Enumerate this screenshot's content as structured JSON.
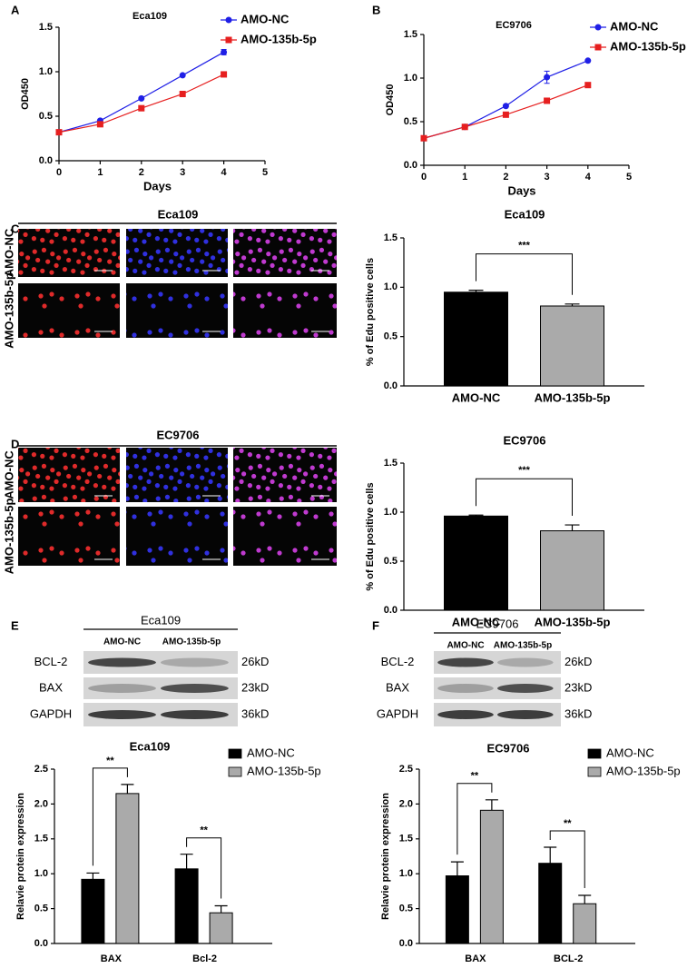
{
  "panel_labels": [
    "A",
    "B",
    "C",
    "D",
    "E",
    "F"
  ],
  "chart_data": [
    {
      "type": "line",
      "title": "Eca109",
      "x_label": "Days",
      "y_label": "OD450",
      "x": [
        0,
        1,
        2,
        3,
        4
      ],
      "xlim": [
        0,
        5
      ],
      "xticks": [
        0,
        1,
        2,
        3,
        4,
        5
      ],
      "ylim": [
        0,
        1.5
      ],
      "yticks": [
        {
          "value": 0,
          "label": "0.0"
        },
        {
          "value": 0.5,
          "label": "0.5"
        },
        {
          "value": 1,
          "label": "1.0"
        },
        {
          "value": 1.5,
          "label": "1.5"
        }
      ],
      "legend": "upper right",
      "series": [
        {
          "name": "AMO-NC",
          "color": "#1f1fe6",
          "marker": "circle",
          "values": [
            0.32,
            0.45,
            0.7,
            0.96,
            1.22
          ],
          "errors": [
            0.01,
            0.01,
            0.01,
            0.01,
            0.03
          ]
        },
        {
          "name": "AMO-135b-5p",
          "color": "#e61f1f",
          "marker": "square",
          "values": [
            0.32,
            0.41,
            0.59,
            0.75,
            0.97
          ],
          "errors": [
            0.01,
            0.01,
            0.01,
            0.01,
            0.01
          ]
        }
      ]
    },
    {
      "type": "line",
      "title": "EC9706",
      "x_label": "Days",
      "y_label": "OD450",
      "x": [
        0,
        1,
        2,
        3,
        4
      ],
      "xlim": [
        0,
        5
      ],
      "xticks": [
        0,
        1,
        2,
        3,
        4,
        5
      ],
      "ylim": [
        0,
        1.5
      ],
      "yticks": [
        {
          "value": 0,
          "label": "0.0"
        },
        {
          "value": 0.5,
          "label": "0.5"
        },
        {
          "value": 1,
          "label": "1.0"
        },
        {
          "value": 1.5,
          "label": "1.5"
        }
      ],
      "legend": "upper right",
      "series": [
        {
          "name": "AMO-NC",
          "color": "#1f1fe6",
          "marker": "circle",
          "values": [
            0.31,
            0.44,
            0.68,
            1.01,
            1.2
          ],
          "errors": [
            0.01,
            0.01,
            0.01,
            0.07,
            0.01
          ]
        },
        {
          "name": "AMO-135b-5p",
          "color": "#e61f1f",
          "marker": "square",
          "values": [
            0.31,
            0.44,
            0.58,
            0.74,
            0.92
          ],
          "errors": [
            0.01,
            0.01,
            0.01,
            0.01,
            0.01
          ]
        }
      ]
    },
    {
      "type": "bar",
      "title": "Eca109",
      "y_label": "% of Edu positive cells",
      "categories": [
        "AMO-NC",
        "AMO-135b-5p"
      ],
      "values": [
        0.95,
        0.81
      ],
      "errors": [
        0.02,
        0.02
      ],
      "colors": [
        "#000000",
        "#aaaaaa"
      ],
      "ylim": [
        0,
        1.5
      ],
      "yticks": [
        {
          "value": 0,
          "label": "0.0"
        },
        {
          "value": 0.5,
          "label": "0.5"
        },
        {
          "value": 1,
          "label": "1.0"
        },
        {
          "value": 1.5,
          "label": "1.5"
        }
      ],
      "annotations": [
        "***"
      ]
    },
    {
      "type": "bar",
      "title": "EC9706",
      "y_label": "% of Edu positive cells",
      "categories": [
        "AMO-NC",
        "AMO-135b-5p"
      ],
      "values": [
        0.96,
        0.81
      ],
      "errors": [
        0.01,
        0.06
      ],
      "colors": [
        "#000000",
        "#aaaaaa"
      ],
      "ylim": [
        0,
        1.5
      ],
      "yticks": [
        {
          "value": 0,
          "label": "0.0"
        },
        {
          "value": 0.5,
          "label": "0.5"
        },
        {
          "value": 1,
          "label": "1.0"
        },
        {
          "value": 1.5,
          "label": "1.5"
        }
      ],
      "annotations": [
        "***"
      ]
    },
    {
      "type": "grouped_bar",
      "title": "Eca109",
      "y_label": "Relavie protein expression",
      "categories": [
        "BAX",
        "Bcl-2"
      ],
      "legend": "upper right",
      "ylim": [
        0,
        2.5
      ],
      "yticks": [
        {
          "value": 0,
          "label": "0.0"
        },
        {
          "value": 0.5,
          "label": "0.5"
        },
        {
          "value": 1,
          "label": "1.0"
        },
        {
          "value": 1.5,
          "label": "1.5"
        },
        {
          "value": 2,
          "label": "2.0"
        },
        {
          "value": 2.5,
          "label": "2.5"
        }
      ],
      "series": [
        {
          "name": "AMO-NC",
          "color": "#000000",
          "values": [
            0.92,
            1.07
          ],
          "errors": [
            0.09,
            0.21
          ]
        },
        {
          "name": "AMO-135b-5p",
          "color": "#aaaaaa",
          "values": [
            2.15,
            0.44
          ],
          "errors": [
            0.13,
            0.1
          ]
        }
      ],
      "annotations": [
        "**",
        "**"
      ]
    },
    {
      "type": "grouped_bar",
      "title": "EC9706",
      "y_label": "Relavie protein expression",
      "categories": [
        "BAX",
        "BCL-2"
      ],
      "legend": "upper right",
      "ylim": [
        0,
        2.5
      ],
      "yticks": [
        {
          "value": 0,
          "label": "0.0"
        },
        {
          "value": 0.5,
          "label": "0.5"
        },
        {
          "value": 1,
          "label": "1.0"
        },
        {
          "value": 1.5,
          "label": "1.5"
        },
        {
          "value": 2,
          "label": "2.0"
        },
        {
          "value": 2.5,
          "label": "2.5"
        }
      ],
      "series": [
        {
          "name": "AMO-NC",
          "color": "#000000",
          "values": [
            0.97,
            1.15
          ],
          "errors": [
            0.2,
            0.23
          ]
        },
        {
          "name": "AMO-135b-5p",
          "color": "#aaaaaa",
          "values": [
            1.91,
            0.57
          ],
          "errors": [
            0.15,
            0.12
          ]
        }
      ],
      "annotations": [
        "**",
        "**"
      ]
    }
  ],
  "images": [
    {
      "title": "Eca109",
      "rows": [
        "AMO-NC",
        "AMO-135b-5p"
      ]
    },
    {
      "title": "EC9706",
      "rows": [
        "AMO-NC",
        "AMO-135b-5p"
      ]
    }
  ],
  "blots": [
    {
      "title": "Eca109",
      "columns": [
        "AMO-NC",
        "AMO-135b-5p"
      ],
      "bands": [
        "BCL-2",
        "BAX",
        "GAPDH"
      ],
      "sizes": [
        "26kD",
        "23kD",
        "36kD"
      ]
    },
    {
      "title": "EC9706",
      "columns": [
        "AMO-NC",
        "AMO-135b-5p"
      ],
      "bands": [
        "BCL-2",
        "BAX",
        "GAPDH"
      ],
      "sizes": [
        "26kD",
        "23kD",
        "36kD"
      ]
    }
  ]
}
